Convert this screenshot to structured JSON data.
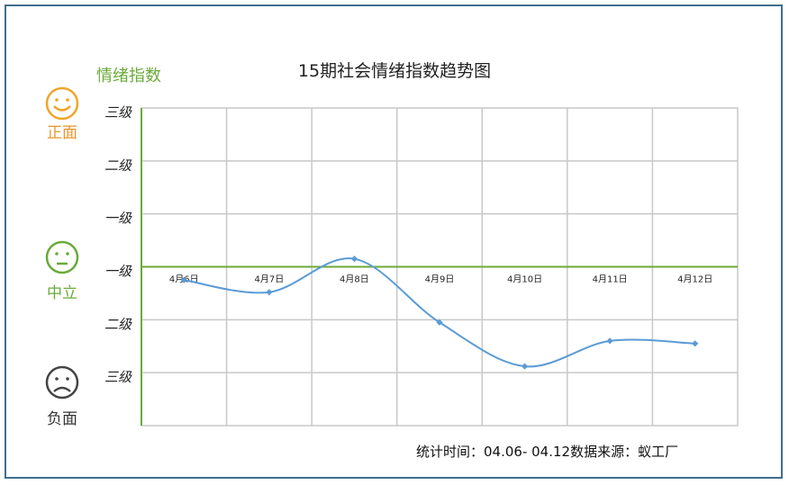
{
  "legend_title": "情绪指数",
  "faces": {
    "positive": {
      "label": "正面",
      "icon": "smiley-face-icon",
      "color": "#f0a52a"
    },
    "neutral": {
      "label": "中立",
      "icon": "neutral-face-icon",
      "color": "#6aaa3a"
    },
    "negative": {
      "label": "负面",
      "icon": "sad-face-icon",
      "color": "#444444"
    }
  },
  "footer": "统计时间：04.06- 04.12数据来源：蚁工厂",
  "chart_data": {
    "type": "line",
    "title": "15期社会情绪指数趋势图",
    "categories": [
      "4月6日",
      "4月7日",
      "4月8日",
      "4月9日",
      "4月10日",
      "4月11日",
      "4月12日"
    ],
    "series": [
      {
        "values": [
          -0.25,
          -0.48,
          0.15,
          -1.05,
          -1.88,
          -1.4,
          -1.45
        ],
        "color": "#5b9bd5"
      }
    ],
    "y_tick_labels": [
      {
        "value": 3,
        "label": "三级"
      },
      {
        "value": 2,
        "label": "二级"
      },
      {
        "value": 1,
        "label": "一级"
      },
      {
        "value": 0,
        "label": "一级"
      },
      {
        "value": -1,
        "label": "二级"
      },
      {
        "value": -2,
        "label": "三级"
      }
    ],
    "ylim": [
      -3,
      3
    ],
    "grid": true,
    "axis_color": "#6aaa3a",
    "grid_color": "#c8c8c8"
  }
}
